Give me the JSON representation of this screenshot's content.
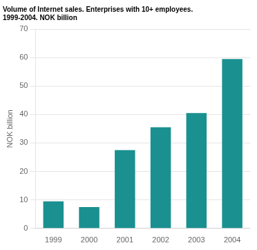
{
  "chart_data": {
    "type": "bar",
    "title": [
      "Volume of Internet sales. Enterprises with 10+ employees.",
      "1999-2004. NOK billion"
    ],
    "ylabel": "NOK billion",
    "categories": [
      "1999",
      "2000",
      "2001",
      "2002",
      "2003",
      "2004"
    ],
    "values": [
      9.5,
      7.5,
      27.5,
      35.5,
      40.5,
      59.5
    ],
    "color": "#1a9090",
    "ylim": [
      0,
      70
    ],
    "yticks": [
      0,
      10,
      20,
      30,
      40,
      50,
      60,
      70
    ],
    "grid": true
  }
}
